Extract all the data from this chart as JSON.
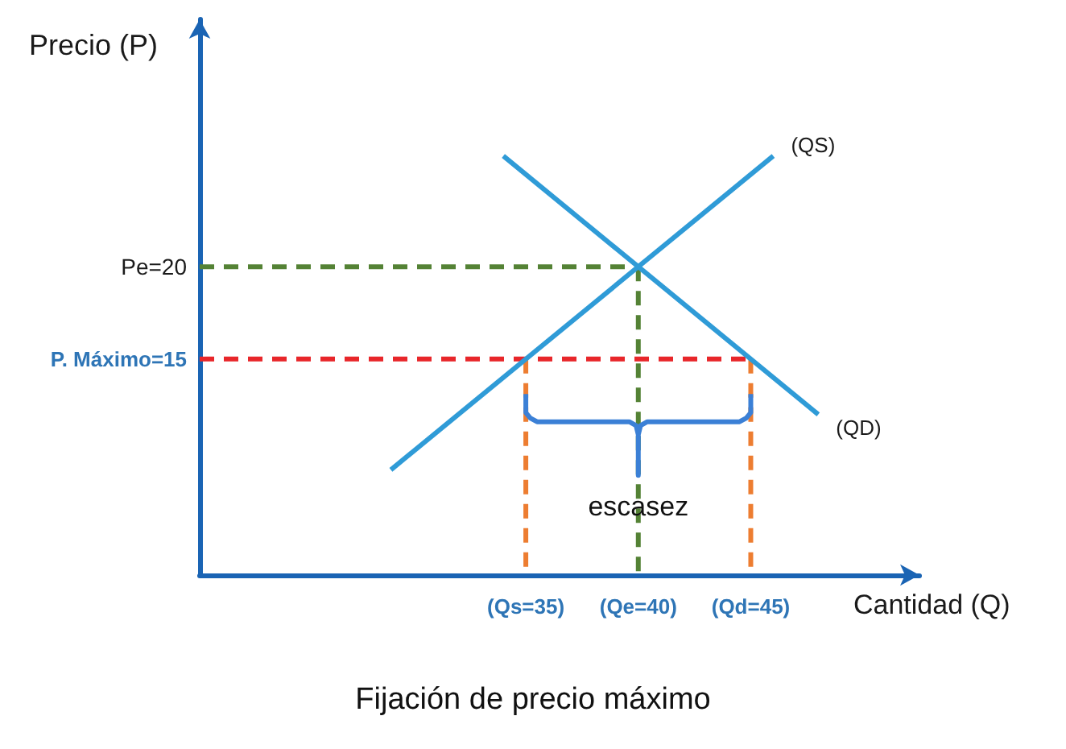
{
  "chart_data": {
    "type": "line",
    "title": "Fijación de precio máximo",
    "xlabel": "Cantidad (Q)",
    "ylabel": "Precio (P)",
    "xlim": [
      20.5,
      52.5
    ],
    "ylim": [
      3.3,
      33.4
    ],
    "xticks": [
      {
        "value": 35,
        "label": "(Qs=35)"
      },
      {
        "value": 40,
        "label": "(Qe=40)"
      },
      {
        "value": 45,
        "label": "(Qd=45)"
      }
    ],
    "yticks": [
      {
        "value": 20,
        "label": "Pe=20"
      },
      {
        "value": 15,
        "label": "P. Máximo=15"
      }
    ],
    "grid": false,
    "legend": false,
    "marker": "none",
    "line_style": "solid",
    "series": [
      {
        "name": "(QS)",
        "color": "#2f9bd7",
        "x": [
          29,
          46
        ],
        "values": [
          9,
          26
        ]
      },
      {
        "name": "(QD)",
        "color": "#2f9bd7",
        "x": [
          34,
          48
        ],
        "values": [
          26,
          12
        ]
      },
      {
        "color": "#548235",
        "line_style": "dashed",
        "x": [
          20.5,
          40
        ],
        "values": [
          20,
          20
        ]
      },
      {
        "color": "#548235",
        "line_style": "dashed",
        "x": [
          40,
          40
        ],
        "values": [
          20,
          3.3
        ]
      },
      {
        "color": "#e8262a",
        "line_style": "dashed",
        "x": [
          20.5,
          45
        ],
        "values": [
          15,
          15
        ]
      },
      {
        "color": "#ed7d31",
        "line_style": "dashed",
        "x": [
          35,
          35
        ],
        "values": [
          15,
          3.3
        ]
      },
      {
        "color": "#ed7d31",
        "line_style": "dashed",
        "x": [
          45,
          45
        ],
        "values": [
          15,
          3.3
        ]
      },
      {
        "color": "#3b80d6",
        "x": [
          35,
          35,
          35.2,
          35.5,
          39.6,
          39.9,
          40,
          40,
          40,
          40.1,
          40.4,
          44.5,
          44.8,
          45,
          45
        ],
        "values": [
          13.1,
          12.1,
          11.8,
          11.6,
          11.6,
          11.4,
          10.9,
          8.7,
          10.9,
          11.4,
          11.6,
          11.6,
          11.8,
          12.1,
          13.1
        ]
      }
    ],
    "annotations": [
      {
        "text": "escasez",
        "x": 40,
        "y": 7
      }
    ]
  }
}
